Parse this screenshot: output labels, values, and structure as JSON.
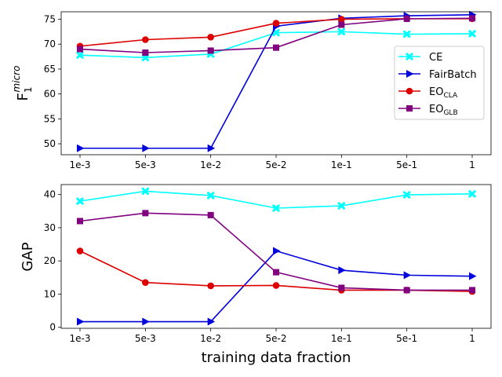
{
  "chart_data": [
    {
      "type": "line",
      "panel": "top",
      "ylabel": "F",
      "ylabel_sub": "1",
      "ylabel_sup": "micro",
      "xlabel": "",
      "categories": [
        "1e-3",
        "5e-3",
        "1e-2",
        "5e-2",
        "1e-1",
        "5e-1",
        "1"
      ],
      "ylim": [
        47.8,
        76.5
      ],
      "yticks": [
        50,
        55,
        60,
        65,
        70,
        75
      ],
      "legend_position": "center-right",
      "series": [
        {
          "name": "CE",
          "name_sub": "",
          "color": "#00ffff",
          "marker": "x",
          "values": [
            67.8,
            67.3,
            68.0,
            72.3,
            72.5,
            72.0,
            72.1
          ]
        },
        {
          "name": "FairBatch",
          "name_sub": "",
          "color": "#0000dd",
          "marker": "triangle-right",
          "values": [
            49.1,
            49.1,
            49.1,
            73.6,
            75.2,
            75.7,
            75.9
          ]
        },
        {
          "name": "EO",
          "name_sub": "CLA",
          "color": "#dd0000",
          "marker": "circle",
          "values": [
            69.6,
            70.9,
            71.4,
            74.2,
            75.0,
            75.1,
            75.1
          ]
        },
        {
          "name": "EO",
          "name_sub": "GLB",
          "color": "#800080",
          "marker": "square",
          "values": [
            69.0,
            68.3,
            68.7,
            69.3,
            73.9,
            75.1,
            75.2
          ]
        }
      ]
    },
    {
      "type": "line",
      "panel": "bottom",
      "ylabel": "GAP",
      "xlabel": "training data fraction",
      "categories": [
        "1e-3",
        "5e-3",
        "1e-2",
        "5e-2",
        "1e-1",
        "5e-1",
        "1"
      ],
      "ylim": [
        -0.3,
        43.0
      ],
      "yticks": [
        0,
        10,
        20,
        30,
        40
      ],
      "series": [
        {
          "name": "CE",
          "color": "#00ffff",
          "marker": "x",
          "values": [
            38.0,
            41.0,
            39.7,
            35.9,
            36.6,
            39.9,
            40.2
          ]
        },
        {
          "name": "FairBatch",
          "color": "#0000dd",
          "marker": "triangle-right",
          "values": [
            1.7,
            1.7,
            1.7,
            23.0,
            17.2,
            15.7,
            15.4
          ]
        },
        {
          "name": "EO_CLA",
          "color": "#dd0000",
          "marker": "circle",
          "values": [
            23.0,
            13.5,
            12.5,
            12.6,
            11.2,
            11.2,
            10.8
          ]
        },
        {
          "name": "EO_GLB",
          "color": "#800080",
          "marker": "square",
          "values": [
            32.0,
            34.4,
            33.8,
            16.6,
            11.9,
            11.2,
            11.2
          ]
        }
      ]
    }
  ]
}
